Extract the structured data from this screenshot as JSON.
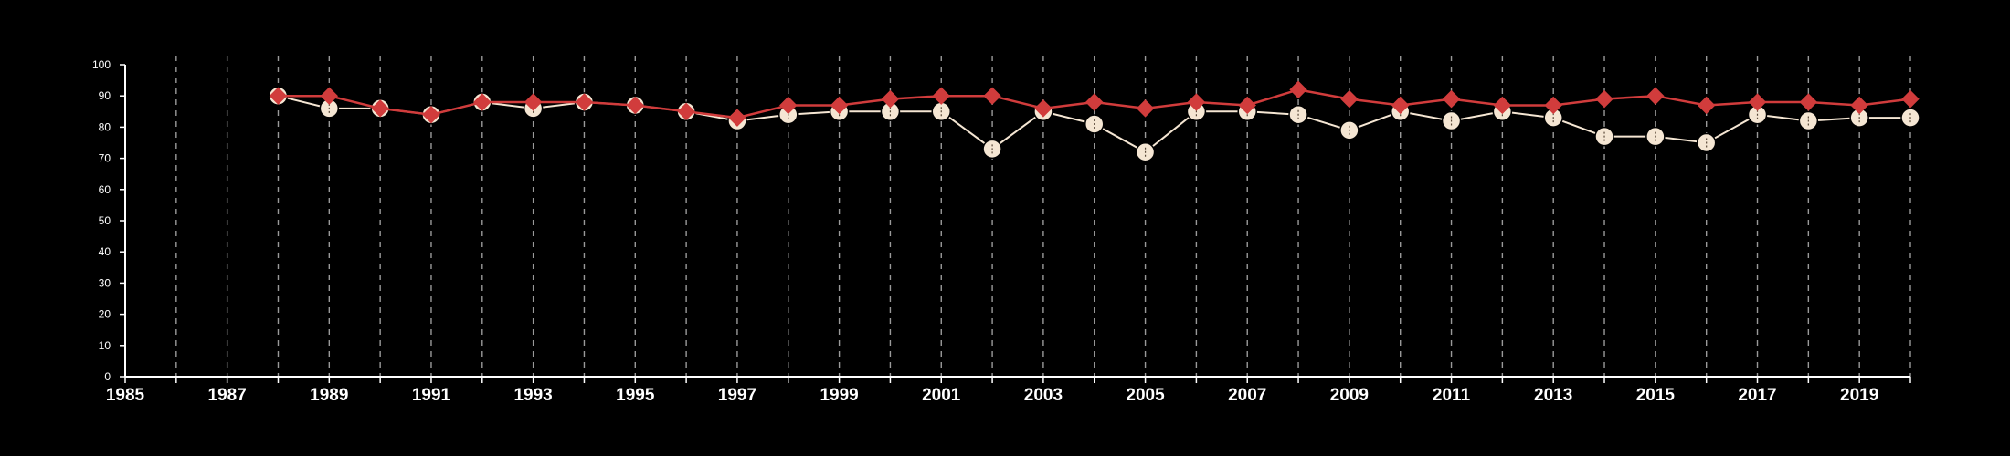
{
  "chart_data": {
    "type": "line",
    "title": "",
    "xlabel": "",
    "ylabel": "",
    "xlim": [
      1985,
      2020
    ],
    "ylim": [
      0,
      100
    ],
    "x_ticks": [
      1985,
      1987,
      1989,
      1991,
      1993,
      1995,
      1997,
      1999,
      2001,
      2003,
      2005,
      2007,
      2009,
      2011,
      2013,
      2015,
      2017,
      2019
    ],
    "y_ticks": [
      0,
      10,
      20,
      30,
      40,
      50,
      60,
      70,
      80,
      90,
      100
    ],
    "grid": "vertical dashed, every year",
    "legend": "none",
    "x": [
      1988,
      1989,
      1990,
      1991,
      1992,
      1993,
      1994,
      1995,
      1996,
      1997,
      1998,
      1999,
      2000,
      2001,
      2002,
      2003,
      2004,
      2005,
      2006,
      2007,
      2008,
      2009,
      2010,
      2011,
      2012,
      2013,
      2014,
      2015,
      2016,
      2017,
      2018,
      2019,
      2020
    ],
    "series": [
      {
        "marker": "circle",
        "color": "#f5e6d3",
        "values": [
          90,
          86,
          86,
          84,
          88,
          86,
          88,
          87,
          85,
          82,
          84,
          85,
          85,
          85,
          73,
          85,
          81,
          72,
          85,
          85,
          84,
          79,
          85,
          82,
          85,
          83,
          77,
          77,
          75,
          84,
          82,
          83,
          83
        ]
      },
      {
        "marker": "diamond",
        "color": "#d13c3c",
        "values": [
          90,
          90,
          86,
          84,
          88,
          88,
          88,
          87,
          85,
          83,
          87,
          87,
          89,
          90,
          90,
          86,
          88,
          86,
          88,
          87,
          92,
          89,
          87,
          89,
          87,
          87,
          89,
          90,
          87,
          88,
          88,
          87,
          89
        ]
      }
    ]
  }
}
